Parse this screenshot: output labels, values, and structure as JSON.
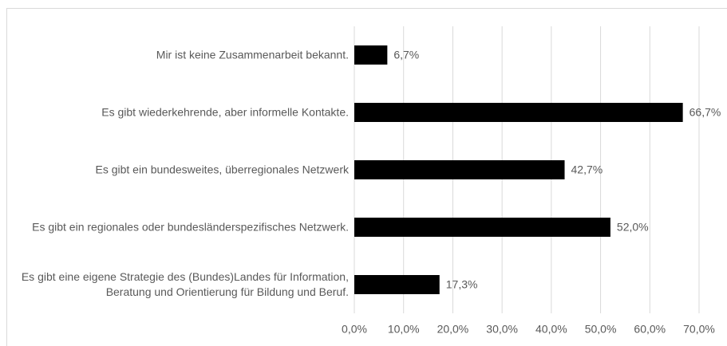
{
  "chart_data": {
    "type": "bar",
    "orientation": "horizontal",
    "categories": [
      "Mir ist keine Zusammenarbeit bekannt.",
      "Es gibt wiederkehrende, aber informelle Kontakte.",
      "Es gibt ein bundesweites, überregionales Netzwerk",
      "Es gibt ein regionales oder bundesländerspezifisches Netzwerk.",
      "Es gibt eine eigene Strategie des (Bundes)Landes für Information, Beratung und Orientierung für Bildung und Beruf."
    ],
    "values": [
      6.7,
      66.7,
      42.7,
      52.0,
      17.3
    ],
    "value_labels": [
      "6,7%",
      "66,7%",
      "42,7%",
      "52,0%",
      "17,3%"
    ],
    "color": "#000000",
    "xlim": [
      0,
      70
    ],
    "xticks": [
      {
        "value": 0,
        "label": "0,0%"
      },
      {
        "value": 10,
        "label": "10,0%"
      },
      {
        "value": 20,
        "label": "20,0%"
      },
      {
        "value": 30,
        "label": "30,0%"
      },
      {
        "value": 40,
        "label": "40,0%"
      },
      {
        "value": 50,
        "label": "50,0%"
      },
      {
        "value": 60,
        "label": "60,0%"
      },
      {
        "value": 70,
        "label": "70,0%"
      }
    ],
    "grid": true
  }
}
